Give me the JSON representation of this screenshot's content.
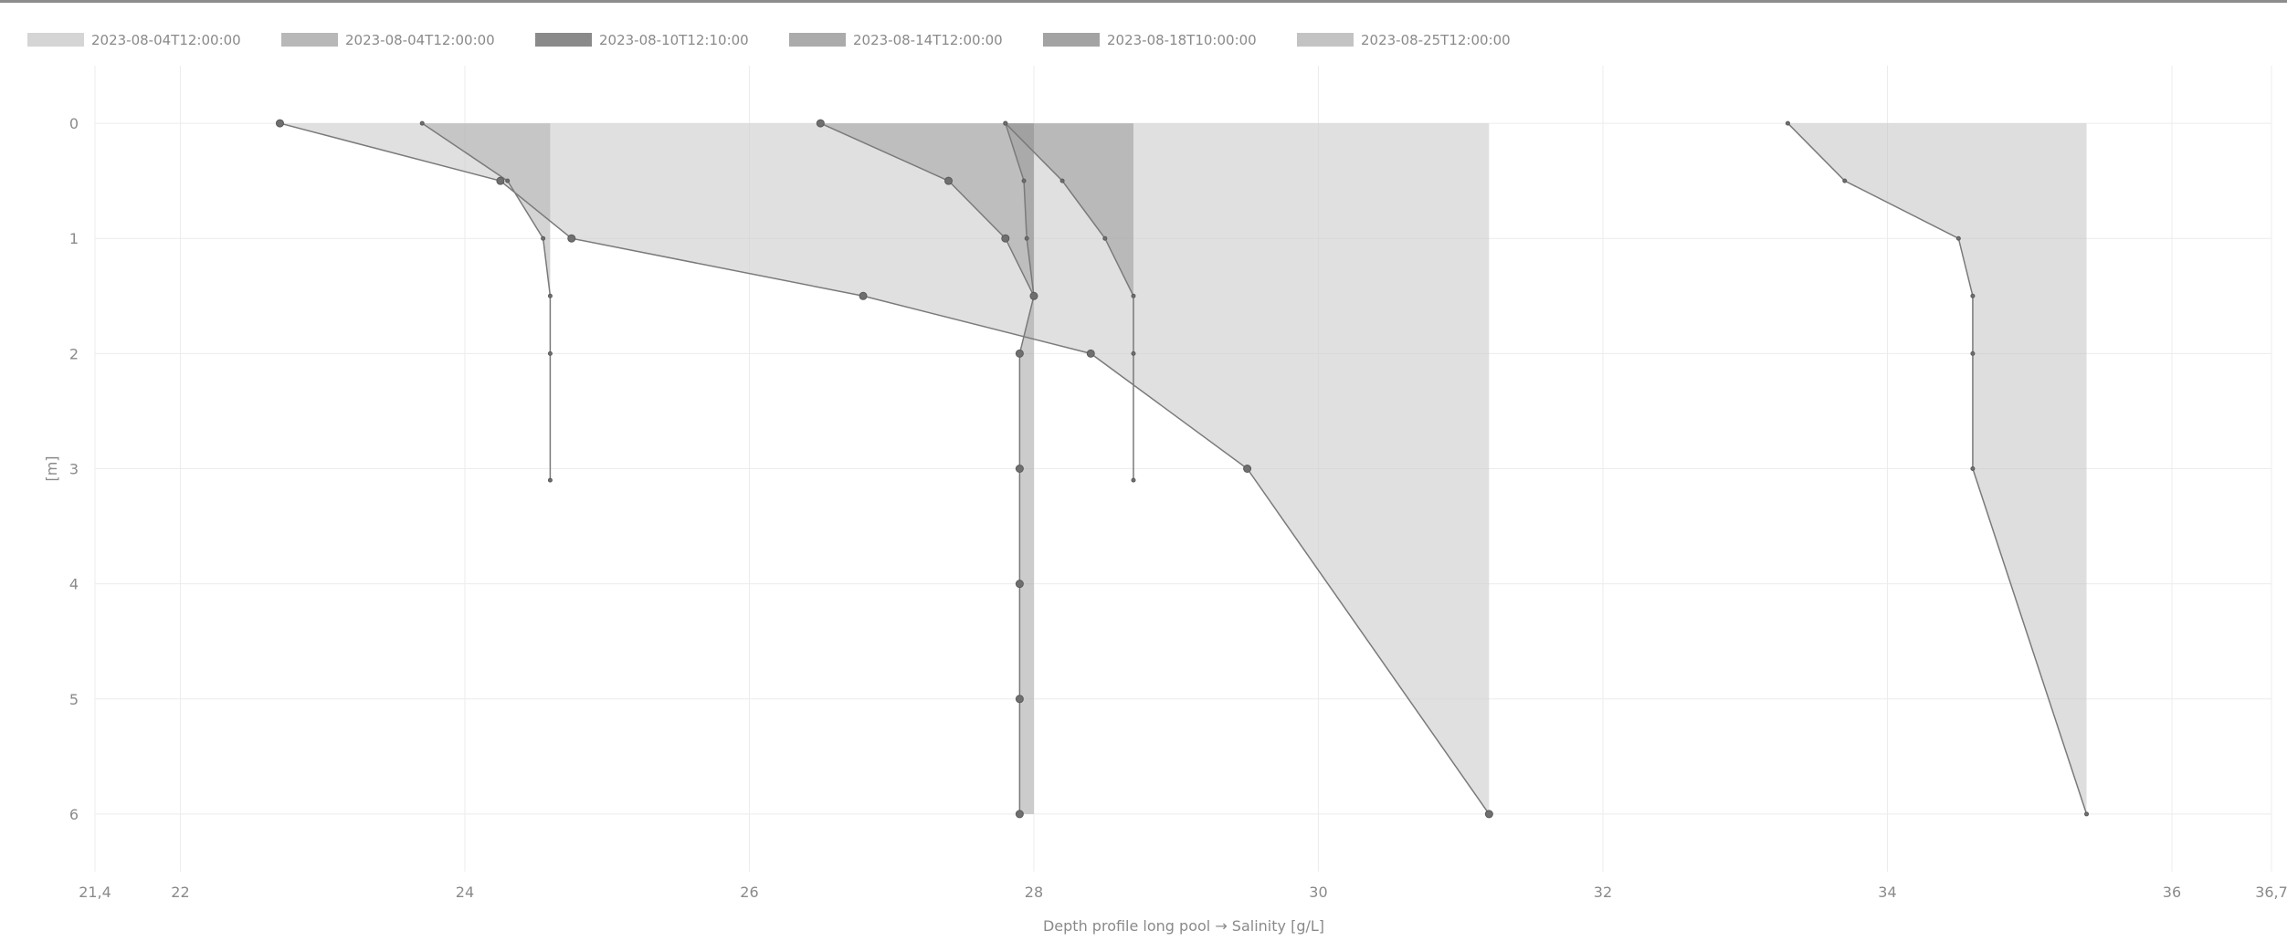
{
  "chart_data": {
    "type": "area",
    "xlabel": "Depth profile long pool → Salinity [g/L]",
    "ylabel": "[m]",
    "xlim": [
      21.4,
      36.7
    ],
    "ylim": [
      6.5,
      -0.5
    ],
    "x_ticks": [
      {
        "value": 21.4,
        "label": "21,4"
      },
      {
        "value": 22,
        "label": "22"
      },
      {
        "value": 24,
        "label": "24"
      },
      {
        "value": 26,
        "label": "26"
      },
      {
        "value": 28,
        "label": "28"
      },
      {
        "value": 30,
        "label": "30"
      },
      {
        "value": 32,
        "label": "32"
      },
      {
        "value": 34,
        "label": "34"
      },
      {
        "value": 36,
        "label": "36"
      },
      {
        "value": 36.7,
        "label": "36,7"
      }
    ],
    "y_ticks": [
      {
        "value": 0,
        "label": "0"
      },
      {
        "value": 1,
        "label": "1"
      },
      {
        "value": 2,
        "label": "2"
      },
      {
        "value": 3,
        "label": "3"
      },
      {
        "value": 4,
        "label": "4"
      },
      {
        "value": 5,
        "label": "5"
      },
      {
        "value": 6,
        "label": "6"
      }
    ],
    "grid": true,
    "legend_position": "top-left",
    "series": [
      {
        "name": "2023-08-04T12:00:00",
        "color": "#d0d0d0",
        "fill_opacity": 0.65,
        "point_radius": 4,
        "points": [
          [
            22.7,
            0
          ],
          [
            24.25,
            0.5
          ],
          [
            24.75,
            1.0
          ],
          [
            26.8,
            1.5
          ],
          [
            28.4,
            2.0
          ],
          [
            29.5,
            3.0
          ],
          [
            31.2,
            6.0
          ]
        ]
      },
      {
        "name": "2023-08-04T12:00:00",
        "color": "#b0b0b0",
        "fill_opacity": 0.55,
        "point_radius": 2,
        "points": [
          [
            23.7,
            0
          ],
          [
            24.3,
            0.5
          ],
          [
            24.55,
            1.0
          ],
          [
            24.6,
            1.5
          ],
          [
            24.6,
            2.0
          ],
          [
            24.6,
            3.1
          ]
        ]
      },
      {
        "name": "2023-08-10T12:10:00",
        "color": "#7d7d7d",
        "fill_opacity": 0.45,
        "point_radius": 2,
        "points": [
          [
            27.8,
            0
          ],
          [
            27.93,
            0.5
          ],
          [
            27.95,
            1.0
          ],
          [
            28.0,
            1.5
          ]
        ]
      },
      {
        "name": "2023-08-14T12:00:00",
        "color": "#a2a2a2",
        "fill_opacity": 0.55,
        "point_radius": 4,
        "points": [
          [
            26.5,
            0
          ],
          [
            27.4,
            0.5
          ],
          [
            27.8,
            1.0
          ],
          [
            28.0,
            1.5
          ],
          [
            27.9,
            2.0
          ],
          [
            27.9,
            3.0
          ],
          [
            27.9,
            4.0
          ],
          [
            27.9,
            5.0
          ],
          [
            27.9,
            6.0
          ]
        ]
      },
      {
        "name": "2023-08-18T10:00:00",
        "color": "#999999",
        "fill_opacity": 0.55,
        "point_radius": 2,
        "points": [
          [
            27.8,
            0
          ],
          [
            28.2,
            0.5
          ],
          [
            28.5,
            1.0
          ],
          [
            28.7,
            1.5
          ],
          [
            28.7,
            2.0
          ],
          [
            28.7,
            3.1
          ]
        ]
      },
      {
        "name": "2023-08-25T12:00:00",
        "color": "#bdbdbd",
        "fill_opacity": 0.5,
        "point_radius": 2,
        "points": [
          [
            33.3,
            0
          ],
          [
            33.7,
            0.5
          ],
          [
            34.5,
            1.0
          ],
          [
            34.6,
            1.5
          ],
          [
            34.6,
            2.0
          ],
          [
            34.6,
            3.0
          ],
          [
            35.4,
            6.0
          ]
        ]
      }
    ]
  }
}
